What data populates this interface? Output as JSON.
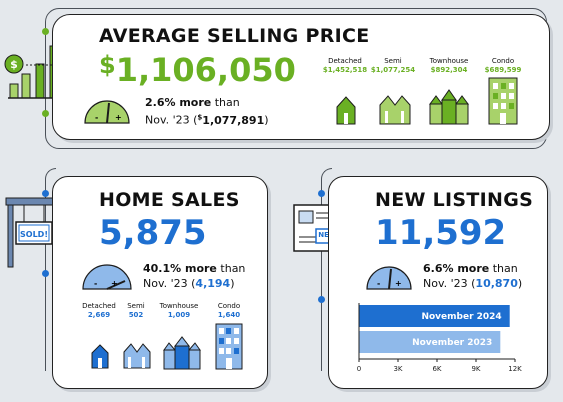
{
  "colors": {
    "green": "#6ab023",
    "green_light": "#a8d26a",
    "blue": "#1e6fd0",
    "blue_light": "#8fb9ea",
    "dark": "#1c1c1c"
  },
  "avg_price": {
    "title": "AVERAGE SELLING PRICE",
    "dollar": "$",
    "value": "1,106,050",
    "pct": "2.6% more",
    "than": " than",
    "prev": "Nov. '23 (",
    "prev_dollar": "$",
    "prev_value": "1,077,891",
    "prev_close": ")",
    "types": [
      {
        "label": "Detached",
        "value": "$1,452,518"
      },
      {
        "label": "Semi",
        "value": "$1,077,254"
      },
      {
        "label": "Townhouse",
        "value": "$892,304"
      },
      {
        "label": "Condo",
        "value": "$689,599"
      }
    ]
  },
  "home_sales": {
    "title": "HOME SALES",
    "sign": "SOLD!",
    "value": "5,875",
    "pct": "40.1% more",
    "than": " than",
    "prev": "Nov. '23 (",
    "prev_value": "4,194",
    "prev_close": ")",
    "types": [
      {
        "label": "Detached",
        "value": "2,669"
      },
      {
        "label": "Semi",
        "value": "502"
      },
      {
        "label": "Townhouse",
        "value": "1,009"
      },
      {
        "label": "Condo",
        "value": "1,640"
      }
    ]
  },
  "new_listings": {
    "title": "NEW LISTINGS",
    "badge": "NEW!",
    "value": "11,592",
    "pct": "6.6% more",
    "than": " than",
    "prev": "Nov. '23 (",
    "prev_value": "10,870",
    "prev_close": ")"
  },
  "chart_data": {
    "type": "bar",
    "orientation": "horizontal",
    "categories": [
      "November 2024",
      "November 2023"
    ],
    "values": [
      11592,
      10870
    ],
    "xlim": [
      0,
      12000
    ],
    "ticks": [
      "0",
      "3K",
      "6K",
      "9K",
      "12K"
    ]
  }
}
